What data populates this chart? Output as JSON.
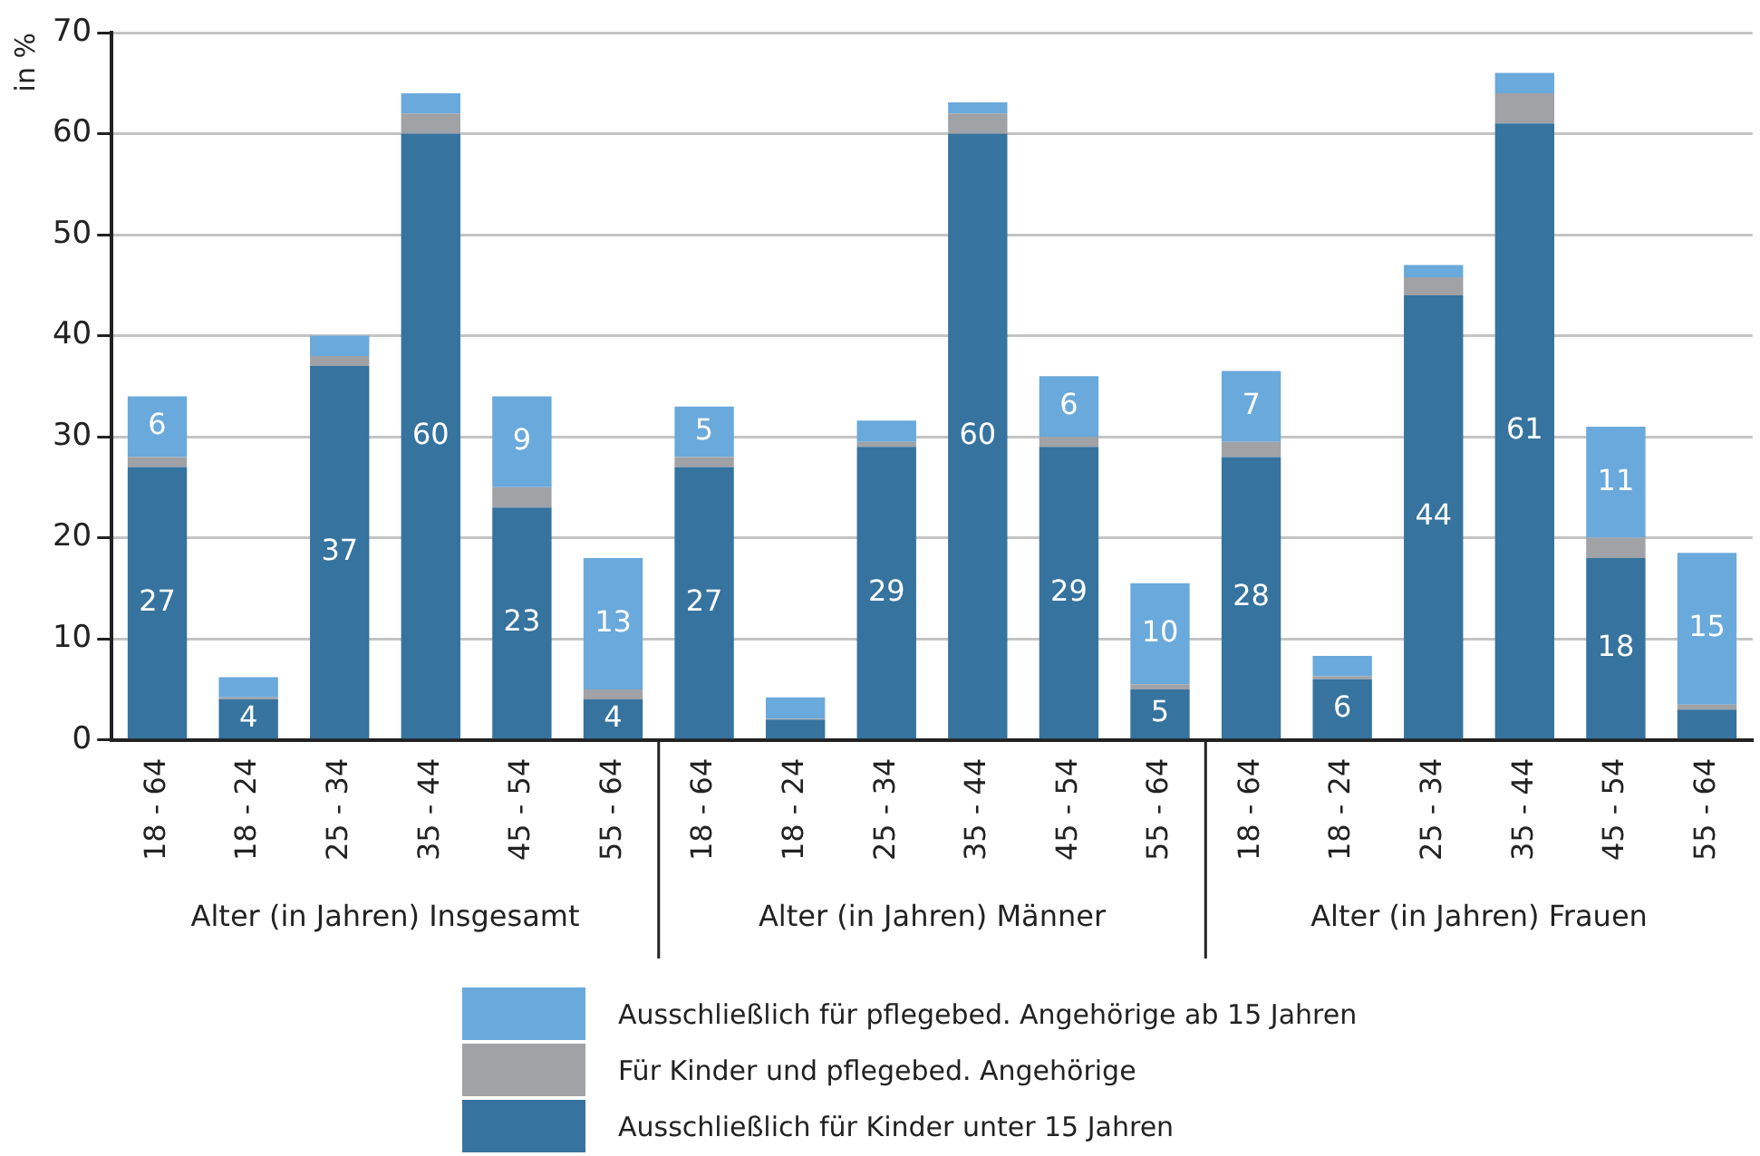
{
  "chart_data": {
    "type": "bar",
    "stacked": true,
    "ylabel": "in %",
    "ylim": [
      0,
      70
    ],
    "yticks": [
      0,
      10,
      20,
      30,
      40,
      50,
      60,
      70
    ],
    "grid": "y",
    "legend": "bottom",
    "categories": [
      "18 - 64",
      "18 - 24",
      "25 - 34",
      "35 - 44",
      "45 - 54",
      "55 - 64",
      "18 - 64",
      "18 - 24",
      "25 - 34",
      "35 - 44",
      "45 - 54",
      "55 - 64",
      "18 - 64",
      "18 - 24",
      "25 - 34",
      "35 - 44",
      "45 - 54",
      "55 - 64"
    ],
    "annotations": [
      "Alter (in Jahren) Insgesamt",
      "Alter (in Jahren) Männer",
      "Alter (in Jahren) Frauen"
    ],
    "series": [
      {
        "name": "Ausschließlich für Kinder unter 15 Jahren",
        "color": "#36739f",
        "values": [
          27,
          4,
          37,
          60,
          23,
          4,
          27,
          2,
          29,
          60,
          29,
          5,
          28,
          6,
          44,
          61,
          18,
          3
        ],
        "value_labels": [
          "27",
          "4",
          "37",
          "60",
          "23",
          "4",
          "27",
          null,
          "29",
          "60",
          "29",
          "5",
          "28",
          "6",
          "44",
          "61",
          "18",
          null
        ]
      },
      {
        "name": "Für Kinder und pflegebed. Angehörige",
        "color": "#a0a2a6",
        "values": [
          1,
          0.2,
          1,
          2,
          2,
          1,
          1,
          0.1,
          0.5,
          2,
          1,
          0.5,
          1.5,
          0.3,
          1.8,
          3,
          2,
          0.5
        ]
      },
      {
        "name": "Ausschließlich für pflegebed. Angehörige ab 15 Jahren",
        "color": "#6aa9db",
        "values": [
          6,
          2,
          2,
          2,
          9,
          13,
          5,
          2.1,
          2.1,
          1.1,
          6,
          10,
          7,
          2,
          1.2,
          2,
          11,
          15
        ],
        "value_labels": [
          "6",
          null,
          null,
          null,
          "9",
          "13",
          "5",
          null,
          null,
          null,
          "6",
          "10",
          "7",
          null,
          null,
          null,
          "11",
          "15"
        ]
      }
    ]
  }
}
